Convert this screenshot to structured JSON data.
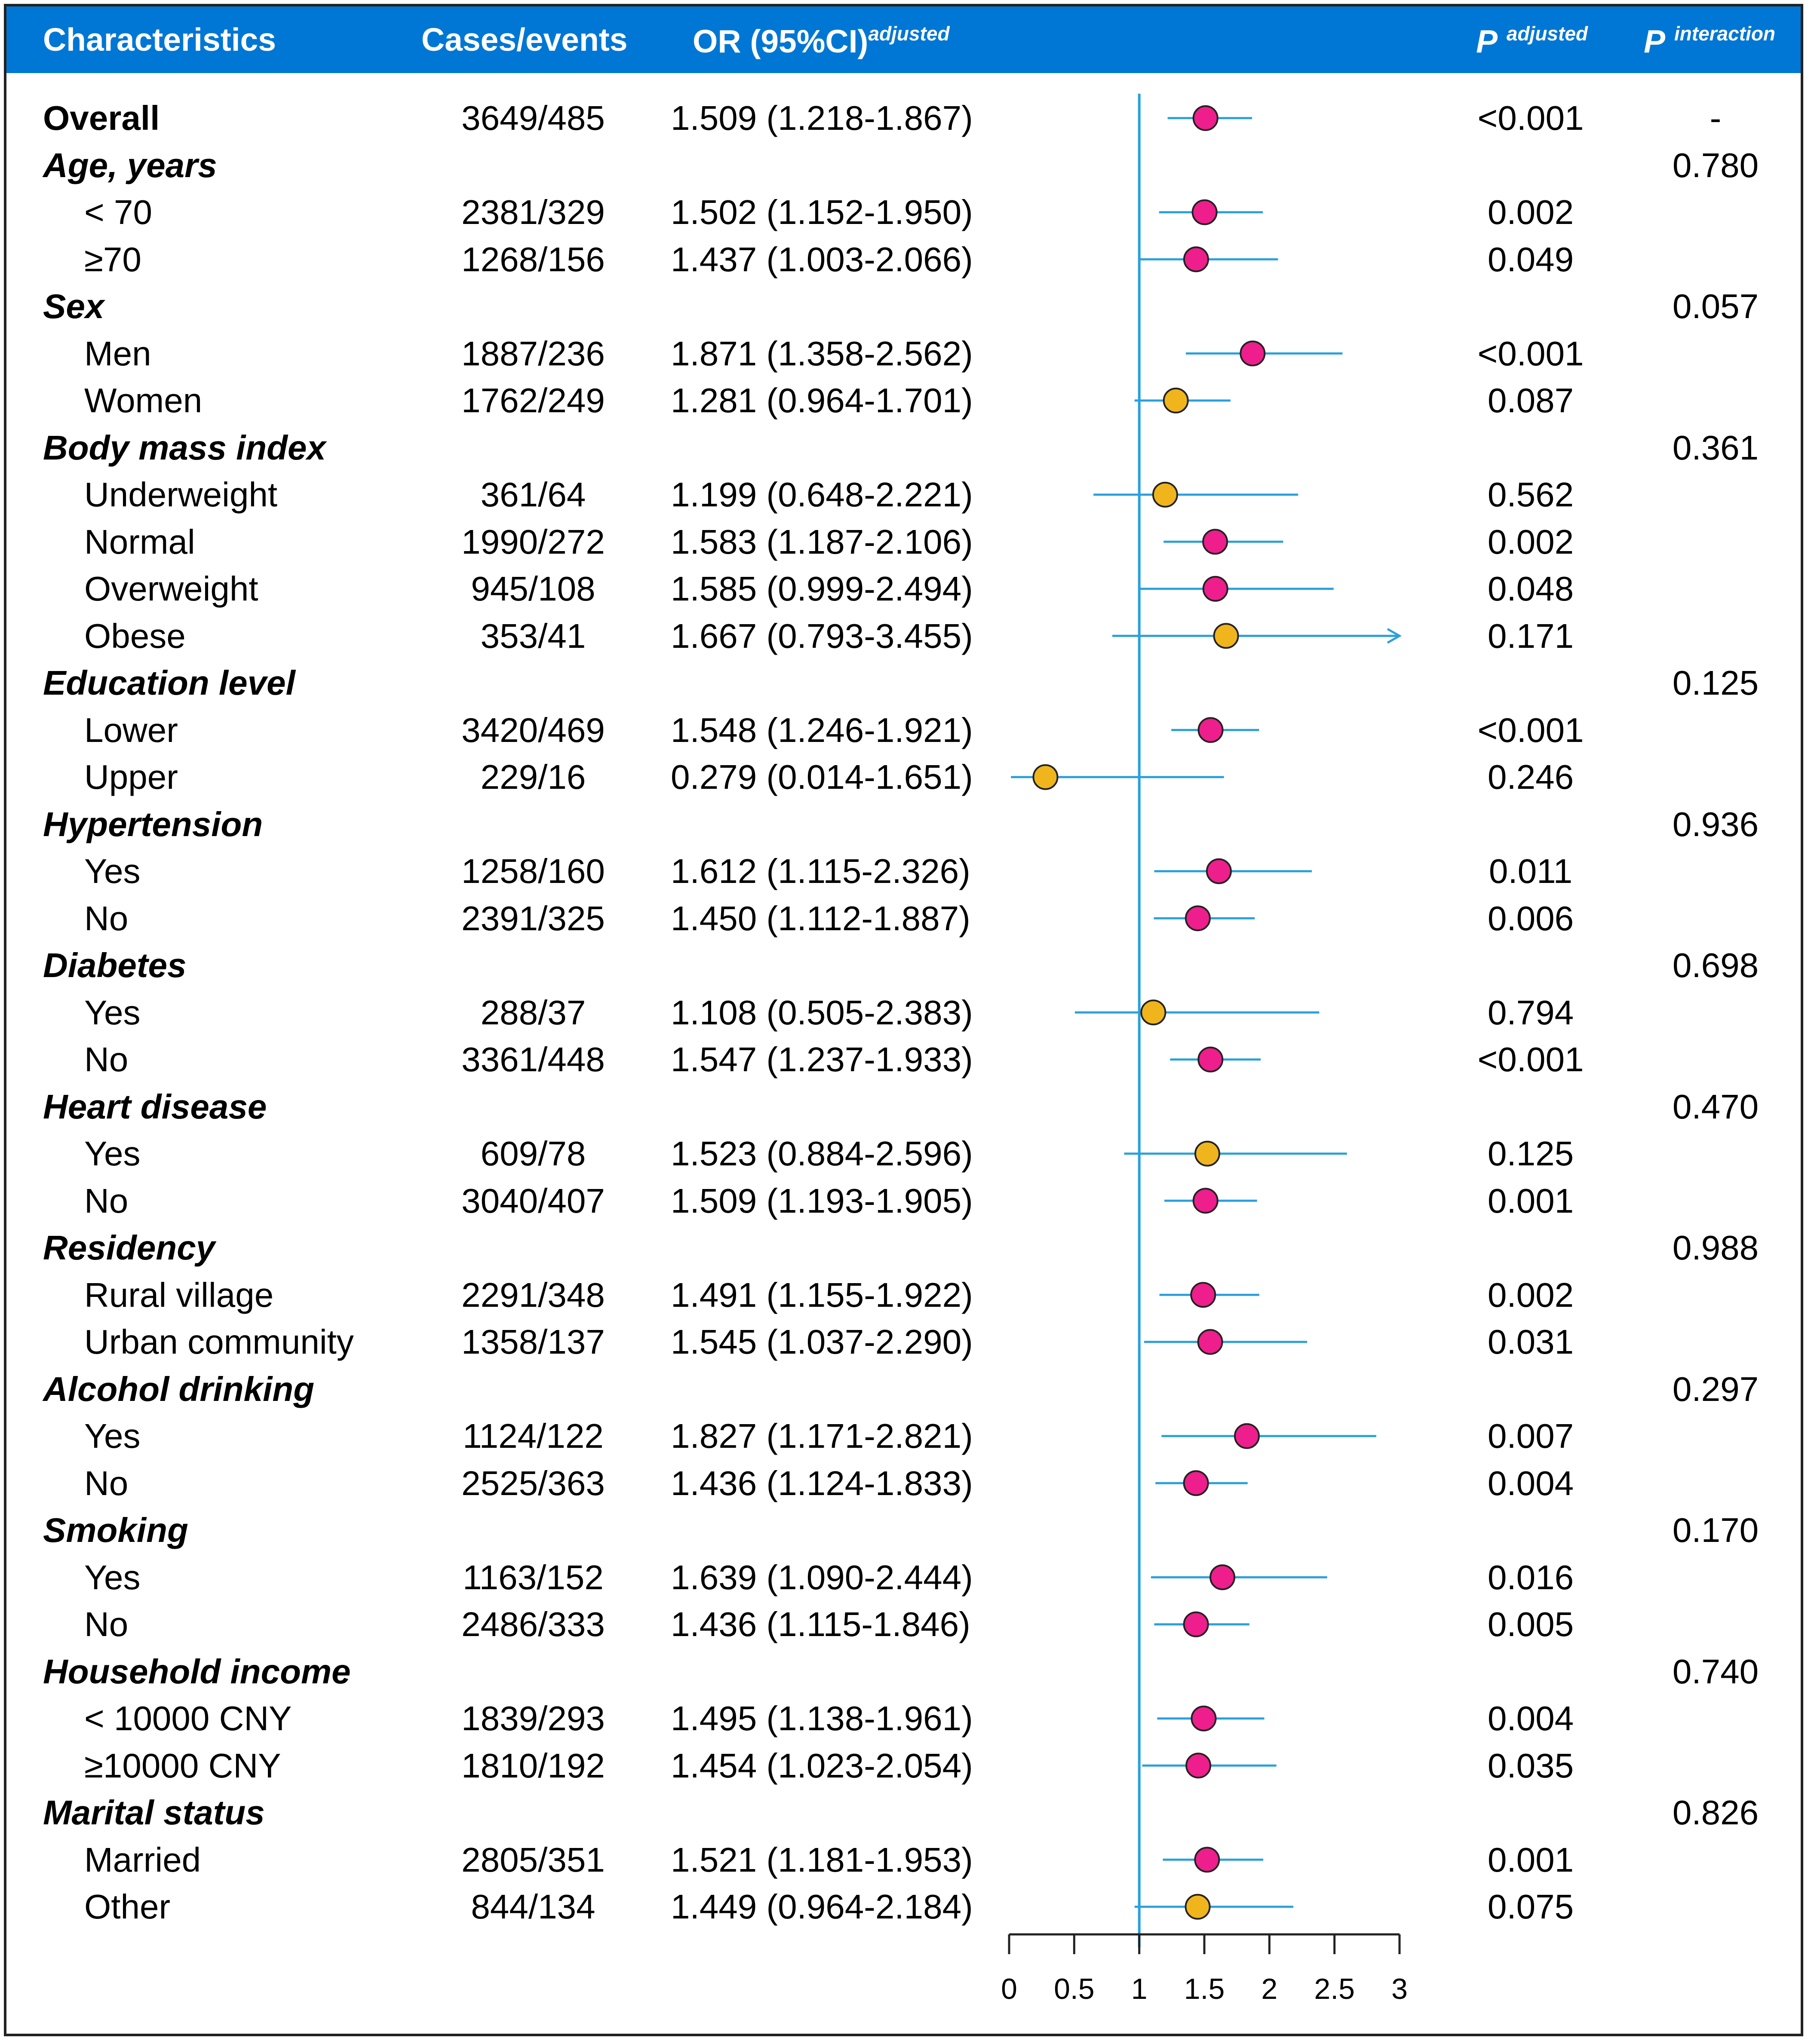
{
  "header": {
    "characteristics": "Characteristics",
    "cases_events": "Cases/events",
    "or_label": "OR (95%CI)",
    "or_sup": "adjusted",
    "p_label": "P",
    "p_sup": "adjusted",
    "pi_label": "P",
    "pi_sup": "interaction"
  },
  "colors": {
    "header_bg": "#0077d4",
    "line": "#2aa0dc",
    "significant": "#ee1e8c",
    "nonsignificant": "#f0b51c"
  },
  "rows": [
    {
      "type": "overall",
      "label": "Overall",
      "cases": "3649/485",
      "or_text": "1.509 (1.218-1.867)",
      "p": "<0.001",
      "p_int": "-"
    },
    {
      "type": "group",
      "label": "Age, years",
      "cases": "",
      "or_text": "",
      "p": "",
      "p_int": "0.780"
    },
    {
      "type": "sub",
      "label": "< 70",
      "cases": "2381/329",
      "or_text": "1.502 (1.152-1.950)",
      "p": "0.002",
      "p_int": ""
    },
    {
      "type": "sub",
      "label": "≥70",
      "cases": "1268/156",
      "or_text": "1.437 (1.003-2.066)",
      "p": "0.049",
      "p_int": ""
    },
    {
      "type": "group",
      "label": "Sex",
      "cases": "",
      "or_text": "",
      "p": "",
      "p_int": "0.057"
    },
    {
      "type": "sub",
      "label": "Men",
      "cases": "1887/236",
      "or_text": "1.871 (1.358-2.562)",
      "p": "<0.001",
      "p_int": ""
    },
    {
      "type": "sub",
      "label": "Women",
      "cases": "1762/249",
      "or_text": "1.281 (0.964-1.701)",
      "p": "0.087",
      "p_int": ""
    },
    {
      "type": "group",
      "label": "Body mass index",
      "cases": "",
      "or_text": "",
      "p": "",
      "p_int": "0.361"
    },
    {
      "type": "sub",
      "label": "Underweight",
      "cases": "361/64",
      "or_text": "1.199 (0.648-2.221)",
      "p": "0.562",
      "p_int": ""
    },
    {
      "type": "sub",
      "label": "Normal",
      "cases": "1990/272",
      "or_text": "1.583 (1.187-2.106)",
      "p": "0.002",
      "p_int": ""
    },
    {
      "type": "sub",
      "label": "Overweight",
      "cases": "945/108",
      "or_text": "1.585 (0.999-2.494)",
      "p": "0.048",
      "p_int": ""
    },
    {
      "type": "sub",
      "label": "Obese",
      "cases": "353/41",
      "or_text": "1.667 (0.793-3.455)",
      "p": "0.171",
      "p_int": ""
    },
    {
      "type": "group",
      "label": "Education level",
      "cases": "",
      "or_text": "",
      "p": "",
      "p_int": "0.125"
    },
    {
      "type": "sub",
      "label": "Lower",
      "cases": "3420/469",
      "or_text": "1.548 (1.246-1.921)",
      "p": "<0.001",
      "p_int": ""
    },
    {
      "type": "sub",
      "label": "Upper",
      "cases": "229/16",
      "or_text": "0.279 (0.014-1.651)",
      "p": "0.246",
      "p_int": ""
    },
    {
      "type": "group",
      "label": "Hypertension",
      "cases": "",
      "or_text": "",
      "p": "",
      "p_int": "0.936"
    },
    {
      "type": "sub",
      "label": "Yes",
      "cases": "1258/160",
      "or_text": "1.612 (1.115-2.326)",
      "p": "0.011",
      "p_int": ""
    },
    {
      "type": "sub",
      "label": "No",
      "cases": "2391/325",
      "or_text": "1.450 (1.112-1.887)",
      "p": "0.006",
      "p_int": ""
    },
    {
      "type": "group",
      "label": "Diabetes",
      "cases": "",
      "or_text": "",
      "p": "",
      "p_int": "0.698"
    },
    {
      "type": "sub",
      "label": "Yes",
      "cases": "288/37",
      "or_text": "1.108 (0.505-2.383)",
      "p": "0.794",
      "p_int": ""
    },
    {
      "type": "sub",
      "label": "No",
      "cases": "3361/448",
      "or_text": "1.547 (1.237-1.933)",
      "p": "<0.001",
      "p_int": ""
    },
    {
      "type": "group",
      "label": "Heart disease",
      "cases": "",
      "or_text": "",
      "p": "",
      "p_int": "0.470"
    },
    {
      "type": "sub",
      "label": "Yes",
      "cases": "609/78",
      "or_text": "1.523 (0.884-2.596)",
      "p": "0.125",
      "p_int": ""
    },
    {
      "type": "sub",
      "label": "No",
      "cases": "3040/407",
      "or_text": "1.509 (1.193-1.905)",
      "p": "0.001",
      "p_int": ""
    },
    {
      "type": "group",
      "label": "Residency",
      "cases": "",
      "or_text": "",
      "p": "",
      "p_int": "0.988"
    },
    {
      "type": "sub",
      "label": "Rural village",
      "cases": "2291/348",
      "or_text": "1.491 (1.155-1.922)",
      "p": "0.002",
      "p_int": ""
    },
    {
      "type": "sub",
      "label": "Urban community",
      "cases": "1358/137",
      "or_text": "1.545 (1.037-2.290)",
      "p": "0.031",
      "p_int": ""
    },
    {
      "type": "group",
      "label": "Alcohol drinking",
      "cases": "",
      "or_text": "",
      "p": "",
      "p_int": "0.297"
    },
    {
      "type": "sub",
      "label": "Yes",
      "cases": "1124/122",
      "or_text": "1.827 (1.171-2.821)",
      "p": "0.007",
      "p_int": ""
    },
    {
      "type": "sub",
      "label": "No",
      "cases": "2525/363",
      "or_text": "1.436 (1.124-1.833)",
      "p": "0.004",
      "p_int": ""
    },
    {
      "type": "group",
      "label": "Smoking",
      "cases": "",
      "or_text": "",
      "p": "",
      "p_int": "0.170"
    },
    {
      "type": "sub",
      "label": "Yes",
      "cases": "1163/152",
      "or_text": "1.639 (1.090-2.444)",
      "p": "0.016",
      "p_int": ""
    },
    {
      "type": "sub",
      "label": "No",
      "cases": "2486/333",
      "or_text": "1.436 (1.115-1.846)",
      "p": "0.005",
      "p_int": ""
    },
    {
      "type": "group",
      "label": "Household income",
      "cases": "",
      "or_text": "",
      "p": "",
      "p_int": "0.740"
    },
    {
      "type": "sub",
      "label": "< 10000 CNY",
      "cases": "1839/293",
      "or_text": "1.495 (1.138-1.961)",
      "p": "0.004",
      "p_int": ""
    },
    {
      "type": "sub",
      "label": "≥10000 CNY",
      "cases": "1810/192",
      "or_text": "1.454 (1.023-2.054)",
      "p": "0.035",
      "p_int": ""
    },
    {
      "type": "group",
      "label": "Marital status",
      "cases": "",
      "or_text": "",
      "p": "",
      "p_int": "0.826"
    },
    {
      "type": "sub",
      "label": "Married",
      "cases": "2805/351",
      "or_text": "1.521 (1.181-1.953)",
      "p": "0.001",
      "p_int": ""
    },
    {
      "type": "sub",
      "label": "Other",
      "cases": "844/134",
      "or_text": "1.449 (0.964-2.184)",
      "p": "0.075",
      "p_int": ""
    }
  ],
  "chart_data": {
    "type": "forest",
    "title": "",
    "xlabel": "",
    "ylabel": "",
    "xlim": [
      0,
      3
    ],
    "xticks": [
      0,
      0.5,
      1,
      1.5,
      2,
      2.5,
      3
    ],
    "xtick_labels": [
      "0",
      "0.5",
      "1",
      "1.5",
      "2",
      "2.5",
      "3"
    ],
    "reference_line": 1,
    "series": [
      {
        "name": "Overall",
        "or": 1.509,
        "lo": 1.218,
        "hi": 1.867,
        "significant": true
      },
      {
        "name": "< 70",
        "or": 1.502,
        "lo": 1.152,
        "hi": 1.95,
        "significant": true
      },
      {
        "name": "≥70",
        "or": 1.437,
        "lo": 1.003,
        "hi": 2.066,
        "significant": true
      },
      {
        "name": "Men",
        "or": 1.871,
        "lo": 1.358,
        "hi": 2.562,
        "significant": true
      },
      {
        "name": "Women",
        "or": 1.281,
        "lo": 0.964,
        "hi": 1.701,
        "significant": false
      },
      {
        "name": "Underweight",
        "or": 1.199,
        "lo": 0.648,
        "hi": 2.221,
        "significant": false
      },
      {
        "name": "Normal",
        "or": 1.583,
        "lo": 1.187,
        "hi": 2.106,
        "significant": true
      },
      {
        "name": "Overweight",
        "or": 1.585,
        "lo": 0.999,
        "hi": 2.494,
        "significant": true
      },
      {
        "name": "Obese",
        "or": 1.667,
        "lo": 0.793,
        "hi": 3.455,
        "significant": false
      },
      {
        "name": "Lower",
        "or": 1.548,
        "lo": 1.246,
        "hi": 1.921,
        "significant": true
      },
      {
        "name": "Upper",
        "or": 0.279,
        "lo": 0.014,
        "hi": 1.651,
        "significant": false
      },
      {
        "name": "Hypertension Yes",
        "or": 1.612,
        "lo": 1.115,
        "hi": 2.326,
        "significant": true
      },
      {
        "name": "Hypertension No",
        "or": 1.45,
        "lo": 1.112,
        "hi": 1.887,
        "significant": true
      },
      {
        "name": "Diabetes Yes",
        "or": 1.108,
        "lo": 0.505,
        "hi": 2.383,
        "significant": false
      },
      {
        "name": "Diabetes No",
        "or": 1.547,
        "lo": 1.237,
        "hi": 1.933,
        "significant": true
      },
      {
        "name": "Heart disease Yes",
        "or": 1.523,
        "lo": 0.884,
        "hi": 2.596,
        "significant": false
      },
      {
        "name": "Heart disease No",
        "or": 1.509,
        "lo": 1.193,
        "hi": 1.905,
        "significant": true
      },
      {
        "name": "Rural village",
        "or": 1.491,
        "lo": 1.155,
        "hi": 1.922,
        "significant": true
      },
      {
        "name": "Urban community",
        "or": 1.545,
        "lo": 1.037,
        "hi": 2.29,
        "significant": true
      },
      {
        "name": "Alcohol Yes",
        "or": 1.827,
        "lo": 1.171,
        "hi": 2.821,
        "significant": true
      },
      {
        "name": "Alcohol No",
        "or": 1.436,
        "lo": 1.124,
        "hi": 1.833,
        "significant": true
      },
      {
        "name": "Smoking Yes",
        "or": 1.639,
        "lo": 1.09,
        "hi": 2.444,
        "significant": true
      },
      {
        "name": "Smoking No",
        "or": 1.436,
        "lo": 1.115,
        "hi": 1.846,
        "significant": true
      },
      {
        "name": "< 10000 CNY",
        "or": 1.495,
        "lo": 1.138,
        "hi": 1.961,
        "significant": true
      },
      {
        "name": "≥10000 CNY",
        "or": 1.454,
        "lo": 1.023,
        "hi": 2.054,
        "significant": true
      },
      {
        "name": "Married",
        "or": 1.521,
        "lo": 1.181,
        "hi": 1.953,
        "significant": true
      },
      {
        "name": "Other",
        "or": 1.449,
        "lo": 0.964,
        "hi": 2.184,
        "significant": false
      }
    ]
  }
}
